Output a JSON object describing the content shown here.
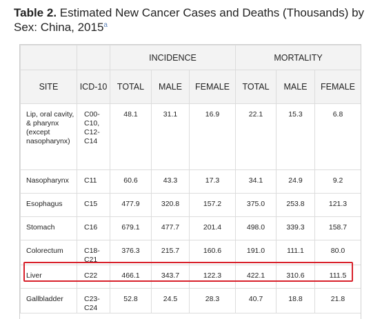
{
  "title": {
    "prefix": "Table 2.",
    "text": " Estimated New Cancer Cases and Deaths (Thousands) by Sex: China, 2015",
    "footnote_mark": "a"
  },
  "header": {
    "incidence": "INCIDENCE",
    "mortality": "MORTALITY",
    "site": "SITE",
    "icd": "ICD-10",
    "total": "TOTAL",
    "male": "MALE",
    "female": "FEMALE"
  },
  "rows": [
    {
      "site": "Lip, oral cavity, & pharynx (except nasopharynx)",
      "icd": "C00-C10, C12-C14",
      "inc_total": "48.1",
      "inc_male": "31.1",
      "inc_female": "16.9",
      "mor_total": "22.1",
      "mor_male": "15.3",
      "mor_female": "6.8"
    },
    {
      "site": "Nasopharynx",
      "icd": "C11",
      "inc_total": "60.6",
      "inc_male": "43.3",
      "inc_female": "17.3",
      "mor_total": "34.1",
      "mor_male": "24.9",
      "mor_female": "9.2"
    },
    {
      "site": "Esophagus",
      "icd": "C15",
      "inc_total": "477.9",
      "inc_male": "320.8",
      "inc_female": "157.2",
      "mor_total": "375.0",
      "mor_male": "253.8",
      "mor_female": "121.3"
    },
    {
      "site": "Stomach",
      "icd": "C16",
      "inc_total": "679.1",
      "inc_male": "477.7",
      "inc_female": "201.4",
      "mor_total": "498.0",
      "mor_male": "339.3",
      "mor_female": "158.7"
    },
    {
      "site": "Colorectum",
      "icd": "C18-C21",
      "inc_total": "376.3",
      "inc_male": "215.7",
      "inc_female": "160.6",
      "mor_total": "191.0",
      "mor_male": "111.1",
      "mor_female": "80.0"
    },
    {
      "site": "Liver",
      "icd": "C22",
      "inc_total": "466.1",
      "inc_male": "343.7",
      "inc_female": "122.3",
      "mor_total": "422.1",
      "mor_male": "310.6",
      "mor_female": "111.5"
    },
    {
      "site": "Gallbladder",
      "icd": "C23-C24",
      "inc_total": "52.8",
      "inc_male": "24.5",
      "inc_female": "28.3",
      "mor_total": "40.7",
      "mor_male": "18.8",
      "mor_female": "21.8"
    }
  ],
  "highlight_color": "#d8202a"
}
